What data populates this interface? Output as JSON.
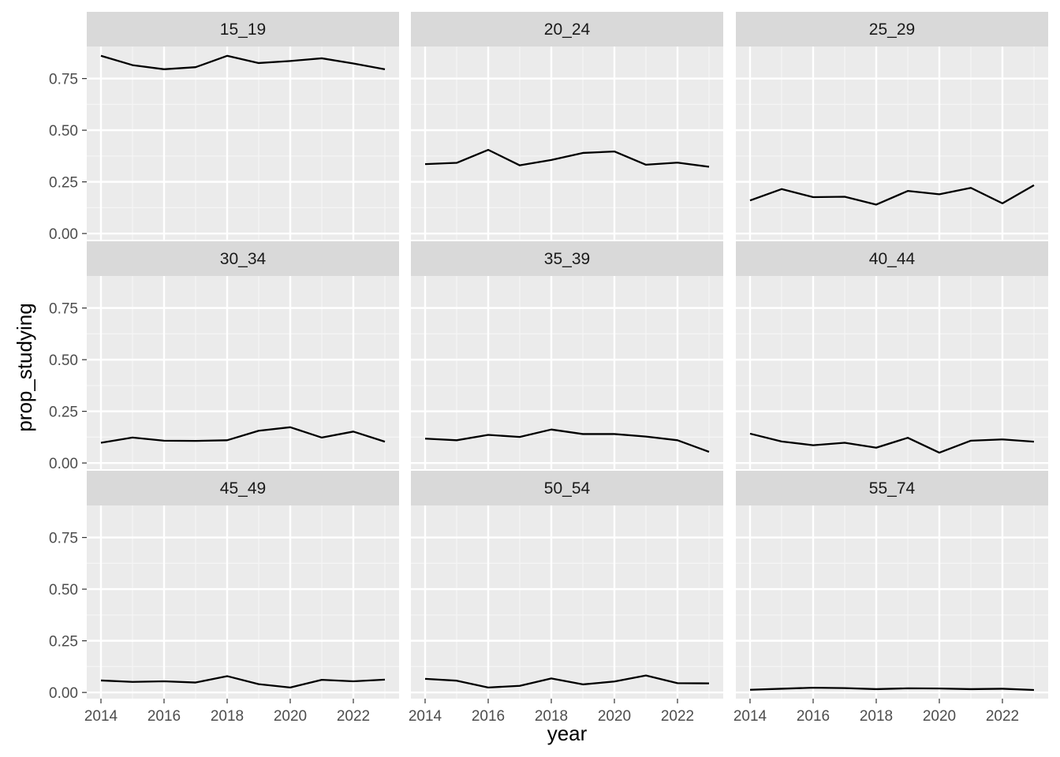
{
  "chart_data": {
    "type": "line",
    "xlabel": "year",
    "ylabel": "prop_studying",
    "x": [
      2014,
      2015,
      2016,
      2017,
      2018,
      2019,
      2020,
      2021,
      2022,
      2023
    ],
    "xlim": [
      2013.55,
      2023.45
    ],
    "ylim": [
      -0.03,
      0.905
    ],
    "x_ticks": [
      2014,
      2016,
      2018,
      2020,
      2022
    ],
    "x_tick_labels": [
      "2014",
      "2016",
      "2018",
      "2020",
      "2022"
    ],
    "y_ticks": [
      0,
      0.25,
      0.5,
      0.75
    ],
    "y_tick_labels": [
      "0.00",
      "0.25",
      "0.50",
      "0.75"
    ],
    "grid": true,
    "facets": [
      {
        "label": "15_19",
        "values": [
          0.86,
          0.815,
          0.795,
          0.805,
          0.86,
          0.825,
          0.835,
          0.848,
          0.823,
          0.795
        ]
      },
      {
        "label": "20_24",
        "values": [
          0.336,
          0.342,
          0.405,
          0.33,
          0.356,
          0.39,
          0.397,
          0.333,
          0.343,
          0.323
        ]
      },
      {
        "label": "25_29",
        "values": [
          0.16,
          0.215,
          0.176,
          0.178,
          0.14,
          0.206,
          0.19,
          0.221,
          0.146,
          0.234
        ]
      },
      {
        "label": "30_34",
        "values": [
          0.098,
          0.123,
          0.108,
          0.107,
          0.11,
          0.156,
          0.173,
          0.123,
          0.152,
          0.103
        ]
      },
      {
        "label": "35_39",
        "values": [
          0.118,
          0.11,
          0.136,
          0.126,
          0.162,
          0.14,
          0.14,
          0.128,
          0.11,
          0.054
        ]
      },
      {
        "label": "40_44",
        "values": [
          0.142,
          0.104,
          0.086,
          0.098,
          0.074,
          0.122,
          0.05,
          0.108,
          0.114,
          0.103
        ]
      },
      {
        "label": "45_49",
        "values": [
          0.058,
          0.051,
          0.054,
          0.048,
          0.079,
          0.04,
          0.024,
          0.061,
          0.054,
          0.062
        ]
      },
      {
        "label": "50_54",
        "values": [
          0.066,
          0.057,
          0.024,
          0.032,
          0.068,
          0.039,
          0.053,
          0.082,
          0.045,
          0.044
        ]
      },
      {
        "label": "55_74",
        "values": [
          0.013,
          0.018,
          0.023,
          0.021,
          0.016,
          0.02,
          0.019,
          0.016,
          0.018,
          0.012
        ]
      }
    ]
  },
  "colors": {
    "panel_background": "#ebebeb",
    "strip_background": "#d9d9d9",
    "grid_major": "#ffffff",
    "grid_minor": "#f5f5f5",
    "line": "#000000",
    "tick": "#333333"
  }
}
